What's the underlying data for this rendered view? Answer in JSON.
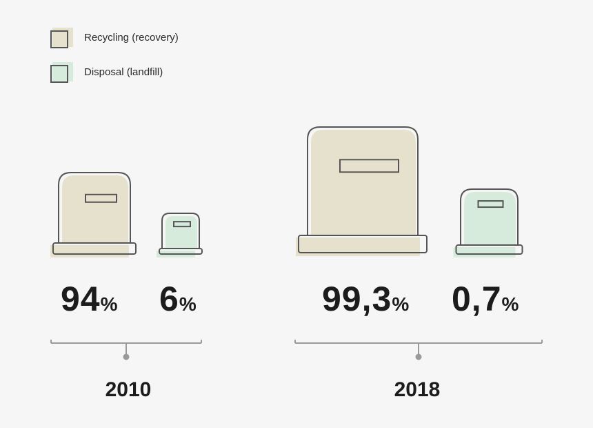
{
  "legend": [
    {
      "label": "Recycling (recovery)",
      "color": "#e6e1cc"
    },
    {
      "label": "Disposal (landfill)",
      "color": "#d7ebdd"
    }
  ],
  "chart_data": {
    "type": "bar",
    "categories": [
      "2010",
      "2018"
    ],
    "series": [
      {
        "name": "Recycling (recovery)",
        "values": [
          94,
          99.3
        ],
        "labels": [
          "94",
          "99,3"
        ]
      },
      {
        "name": "Disposal (landfill)",
        "values": [
          6,
          0.7
        ],
        "labels": [
          "6",
          "0,7"
        ]
      }
    ],
    "unit": "%",
    "title": "",
    "colors": {
      "recycling": "#e6e1cc",
      "disposal": "#d7ebdd",
      "stroke": "#555555",
      "axis": "#9a9a9a"
    }
  }
}
